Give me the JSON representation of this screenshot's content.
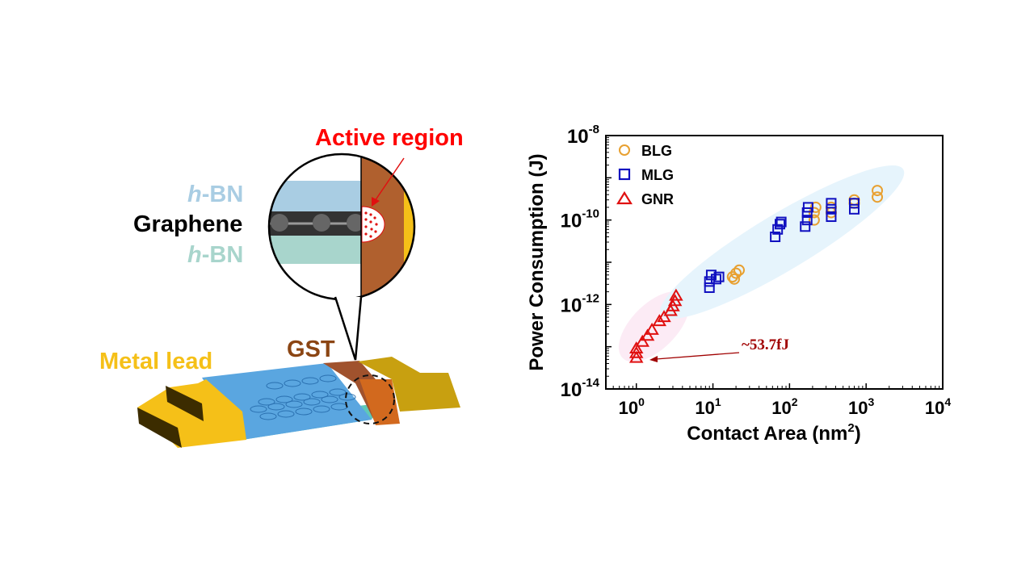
{
  "diagram": {
    "labels": {
      "active_region": "Active region",
      "hbn_top_italic": "h",
      "hbn_top_rest": "-BN",
      "graphene": "Graphene",
      "hbn_bottom_italic": "h",
      "hbn_bottom_rest": "-BN",
      "gst": "GST",
      "metal_lead": "Metal lead"
    },
    "colors": {
      "active_region": "#ff0000",
      "hbn_top": "#a9cde3",
      "hbn_bottom": "#a8d5cc",
      "gst": "#b0602e",
      "metal_lead": "#f5c018"
    }
  },
  "chart_data": {
    "type": "scatter",
    "xlabel": "Contact Area (nm",
    "xlabel_sup": "2",
    "xlabel_end": ")",
    "ylabel": "Power Consumption (J)",
    "xscale": "log",
    "yscale": "log",
    "xlim": [
      0.4,
      10000
    ],
    "ylim": [
      1e-14,
      1e-08
    ],
    "x_ticks": [
      {
        "base": "10",
        "exp": "0"
      },
      {
        "base": "10",
        "exp": "1"
      },
      {
        "base": "10",
        "exp": "2"
      },
      {
        "base": "10",
        "exp": "3"
      },
      {
        "base": "10",
        "exp": "4"
      }
    ],
    "y_ticks": [
      {
        "base": "10",
        "exp": "-8"
      },
      {
        "base": "10",
        "exp": "-10"
      },
      {
        "base": "10",
        "exp": "-12"
      },
      {
        "base": "10",
        "exp": "-14"
      }
    ],
    "grid": false,
    "legend_position": "top-left",
    "annotation": {
      "text": "~53.7fJ",
      "x": 1.0,
      "y": 5.37e-14,
      "color": "#a00000"
    },
    "series": [
      {
        "name": "BLG",
        "marker": "circle",
        "color": "#e8a030",
        "points": [
          [
            18,
            4.5e-12
          ],
          [
            20,
            5.5e-12
          ],
          [
            22,
            6.5e-12
          ],
          [
            19,
            4e-12
          ],
          [
            210,
            1e-10
          ],
          [
            210,
            1.5e-10
          ],
          [
            220,
            2e-10
          ],
          [
            350,
            1.5e-10
          ],
          [
            350,
            2e-10
          ],
          [
            700,
            2.5e-10
          ],
          [
            700,
            3e-10
          ],
          [
            1400,
            3.5e-10
          ],
          [
            1400,
            5e-10
          ]
        ]
      },
      {
        "name": "MLG",
        "marker": "square",
        "color": "#1010c0",
        "points": [
          [
            9,
            2.5e-12
          ],
          [
            9,
            3.5e-12
          ],
          [
            9.5,
            5e-12
          ],
          [
            11,
            4e-12
          ],
          [
            12,
            4.5e-12
          ],
          [
            65,
            4e-11
          ],
          [
            70,
            6e-11
          ],
          [
            75,
            8e-11
          ],
          [
            78,
            9e-11
          ],
          [
            160,
            7e-11
          ],
          [
            170,
            1e-10
          ],
          [
            170,
            1.5e-10
          ],
          [
            175,
            2e-10
          ],
          [
            350,
            1.2e-10
          ],
          [
            350,
            1.8e-10
          ],
          [
            350,
            2.5e-10
          ],
          [
            700,
            1.8e-10
          ],
          [
            700,
            2.5e-10
          ]
        ]
      },
      {
        "name": "GNR",
        "marker": "triangle",
        "color": "#e01010",
        "points": [
          [
            1,
            5.4e-14
          ],
          [
            1,
            7e-14
          ],
          [
            1,
            9e-14
          ],
          [
            1.2,
            1.3e-13
          ],
          [
            1.4,
            1.8e-13
          ],
          [
            1.6,
            2.5e-13
          ],
          [
            2.0,
            4e-13
          ],
          [
            2.3,
            5e-13
          ],
          [
            2.8,
            7e-13
          ],
          [
            3.0,
            9e-13
          ],
          [
            3.2,
            1.2e-12
          ],
          [
            3.3,
            1.6e-12
          ]
        ]
      }
    ]
  }
}
